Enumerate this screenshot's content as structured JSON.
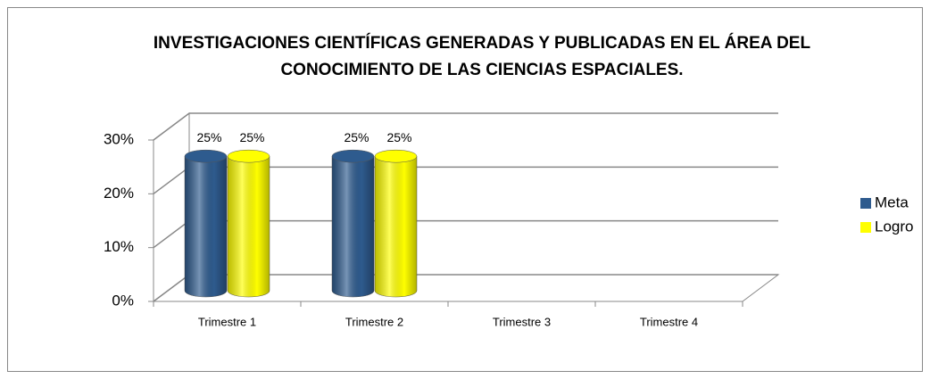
{
  "chart_data": {
    "type": "bar3d",
    "title": "INVESTIGACIONES CIENTÍFICAS GENERADAS Y PUBLICADAS EN EL ÁREA DEL CONOCIMIENTO DE LAS CIENCIAS ESPACIALES.",
    "categories": [
      "Trimestre 1",
      "Trimestre 2",
      "Trimestre 3",
      "Trimestre 4"
    ],
    "series": [
      {
        "name": "Meta",
        "color": "#2e5b8e",
        "values": [
          25,
          25,
          null,
          null
        ],
        "value_labels": [
          "25%",
          "25%",
          null,
          null
        ]
      },
      {
        "name": "Logro",
        "color": "#ffff00",
        "values": [
          25,
          25,
          null,
          null
        ],
        "value_labels": [
          "25%",
          "25%",
          null,
          null
        ]
      }
    ],
    "ylim": [
      0,
      30
    ],
    "yticks": [
      {
        "value": 0,
        "label": "0%"
      },
      {
        "value": 10,
        "label": "10%"
      },
      {
        "value": 20,
        "label": "20%"
      },
      {
        "value": 30,
        "label": "30%"
      }
    ],
    "grid": true,
    "legend": "right"
  }
}
